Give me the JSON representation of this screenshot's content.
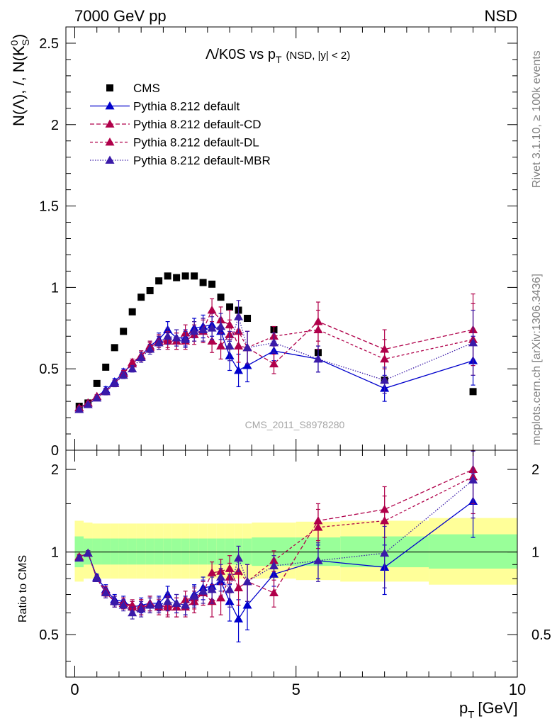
{
  "header": {
    "left": "7000 GeV pp",
    "right": "NSD"
  },
  "side_labels": {
    "rivet": "Rivet 3.1.10, ≥ 100k events",
    "mcplots": "mcplots.cern.ch [arXiv:1306.3436]"
  },
  "watermark": "CMS_2011_S8978280",
  "chart_data": {
    "type": "scatter",
    "title": "Λ/K0S vs p_T (NSD, |y| < 2)",
    "title_main": "Λ/K0S vs p",
    "title_sub": "T",
    "title_suffix": "(NSD, |y| < 2)",
    "xlabel": "p_T [GeV]",
    "xlabel_main": "p",
    "xlabel_sub": "T",
    "xlabel_suffix": "[GeV]",
    "ylabel": "N(Λ), /, N(K0S)",
    "ylabel_main": "N(Λ), /, N(K",
    "ylabel_sup": "0",
    "ylabel_sub": "S",
    "ylabel_end": ")",
    "ratio_ylabel": "Ratio to CMS",
    "xlim": [
      -0.2,
      10.0
    ],
    "ylim": [
      0,
      2.6
    ],
    "ratio_ylim": [
      0.35,
      2.35
    ],
    "ratio_log": true,
    "x_ticks": [
      "0",
      "5",
      "10"
    ],
    "y_ticks": [
      "0",
      "0.5",
      "1",
      "1.5",
      "2",
      "2.5"
    ],
    "ratio_ticks": [
      "0.5",
      "1",
      "2"
    ],
    "legend_position": "top-left",
    "series": [
      {
        "name": "CMS",
        "kind": "data",
        "color": "#000000",
        "x": [
          0.1,
          0.3,
          0.5,
          0.7,
          0.9,
          1.1,
          1.3,
          1.5,
          1.7,
          1.9,
          2.1,
          2.3,
          2.5,
          2.7,
          2.9,
          3.1,
          3.3,
          3.5,
          3.7,
          3.9,
          4.5,
          5.5,
          7.0,
          9.0
        ],
        "y": [
          0.27,
          0.29,
          0.41,
          0.51,
          0.63,
          0.73,
          0.85,
          0.94,
          0.98,
          1.04,
          1.07,
          1.06,
          1.07,
          1.07,
          1.03,
          1.02,
          0.94,
          0.88,
          0.86,
          0.81,
          0.74,
          0.6,
          0.43,
          0.36
        ]
      },
      {
        "name": "Pythia 8.212 default",
        "kind": "mc",
        "color": "#0000cc",
        "dash": "",
        "x": [
          0.1,
          0.3,
          0.5,
          0.7,
          0.9,
          1.1,
          1.3,
          1.5,
          1.7,
          1.9,
          2.1,
          2.3,
          2.5,
          2.7,
          2.9,
          3.1,
          3.3,
          3.5,
          3.7,
          3.9,
          4.5,
          5.5,
          7.0,
          9.0
        ],
        "y": [
          0.26,
          0.29,
          0.33,
          0.37,
          0.42,
          0.48,
          0.53,
          0.58,
          0.64,
          0.68,
          0.74,
          0.69,
          0.69,
          0.75,
          0.76,
          0.77,
          0.73,
          0.58,
          0.49,
          0.52,
          0.61,
          0.56,
          0.38,
          0.55
        ],
        "err": [
          0.01,
          0.01,
          0.01,
          0.02,
          0.02,
          0.02,
          0.02,
          0.03,
          0.03,
          0.04,
          0.05,
          0.05,
          0.05,
          0.06,
          0.07,
          0.07,
          0.08,
          0.09,
          0.1,
          0.1,
          0.06,
          0.08,
          0.08,
          0.15
        ],
        "ratio": [
          0.96,
          0.99,
          0.81,
          0.73,
          0.67,
          0.66,
          0.63,
          0.64,
          0.65,
          0.65,
          0.7,
          0.65,
          0.64,
          0.7,
          0.74,
          0.75,
          0.78,
          0.66,
          0.57,
          0.64,
          0.83,
          0.93,
          0.88,
          1.53
        ],
        "ratio_err": [
          0.02,
          0.02,
          0.02,
          0.03,
          0.03,
          0.03,
          0.03,
          0.04,
          0.04,
          0.04,
          0.05,
          0.05,
          0.05,
          0.06,
          0.07,
          0.08,
          0.09,
          0.1,
          0.1,
          0.12,
          0.08,
          0.13,
          0.18,
          0.4
        ]
      },
      {
        "name": "Pythia 8.212 default-CD",
        "kind": "mc",
        "color": "#b0004a",
        "dash": "6,3",
        "x": [
          0.1,
          0.3,
          0.5,
          0.7,
          0.9,
          1.1,
          1.3,
          1.5,
          1.7,
          1.9,
          2.1,
          2.3,
          2.5,
          2.7,
          2.9,
          3.1,
          3.3,
          3.5,
          3.7,
          3.9,
          4.5,
          5.5,
          7.0,
          9.0
        ],
        "y": [
          0.26,
          0.29,
          0.33,
          0.36,
          0.41,
          0.47,
          0.53,
          0.58,
          0.63,
          0.67,
          0.67,
          0.67,
          0.67,
          0.71,
          0.74,
          0.86,
          0.8,
          0.77,
          0.64,
          0.63,
          0.53,
          0.79,
          0.62,
          0.74
        ],
        "err": [
          0.01,
          0.01,
          0.01,
          0.02,
          0.02,
          0.02,
          0.02,
          0.03,
          0.03,
          0.04,
          0.05,
          0.05,
          0.05,
          0.06,
          0.07,
          0.07,
          0.08,
          0.09,
          0.1,
          0.1,
          0.06,
          0.12,
          0.12,
          0.22
        ],
        "ratio": [
          0.96,
          0.99,
          0.8,
          0.71,
          0.66,
          0.65,
          0.63,
          0.63,
          0.64,
          0.64,
          0.63,
          0.63,
          0.63,
          0.66,
          0.71,
          0.84,
          0.85,
          0.87,
          0.74,
          0.78,
          0.71,
          1.3,
          1.43,
          2.0
        ],
        "ratio_err": [
          0.02,
          0.02,
          0.02,
          0.03,
          0.03,
          0.03,
          0.03,
          0.04,
          0.04,
          0.04,
          0.05,
          0.05,
          0.05,
          0.06,
          0.07,
          0.08,
          0.09,
          0.1,
          0.1,
          0.12,
          0.08,
          0.2,
          0.3,
          0.5
        ]
      },
      {
        "name": "Pythia 8.212 default-DL",
        "kind": "mc",
        "color": "#b0004a",
        "dash": "4,3",
        "x": [
          0.1,
          0.3,
          0.5,
          0.7,
          0.9,
          1.1,
          1.3,
          1.5,
          1.7,
          1.9,
          2.1,
          2.3,
          2.5,
          2.7,
          2.9,
          3.1,
          3.3,
          3.5,
          3.7,
          3.9,
          4.5,
          5.5,
          7.0,
          9.0
        ],
        "y": [
          0.26,
          0.29,
          0.33,
          0.36,
          0.41,
          0.47,
          0.54,
          0.58,
          0.64,
          0.66,
          0.68,
          0.67,
          0.72,
          0.73,
          0.73,
          0.67,
          0.64,
          0.71,
          0.73,
          0.63,
          0.7,
          0.74,
          0.56,
          0.68
        ],
        "err": [
          0.01,
          0.01,
          0.01,
          0.02,
          0.02,
          0.02,
          0.02,
          0.03,
          0.03,
          0.04,
          0.05,
          0.05,
          0.05,
          0.06,
          0.07,
          0.07,
          0.08,
          0.09,
          0.1,
          0.1,
          0.06,
          0.12,
          0.12,
          0.22
        ],
        "ratio": [
          0.96,
          0.99,
          0.8,
          0.72,
          0.66,
          0.65,
          0.64,
          0.63,
          0.65,
          0.63,
          0.64,
          0.63,
          0.67,
          0.68,
          0.71,
          0.66,
          0.68,
          0.81,
          0.85,
          0.78,
          0.93,
          1.23,
          1.3,
          1.88
        ],
        "ratio_err": [
          0.02,
          0.02,
          0.02,
          0.03,
          0.03,
          0.03,
          0.03,
          0.04,
          0.04,
          0.04,
          0.05,
          0.05,
          0.05,
          0.06,
          0.07,
          0.08,
          0.09,
          0.1,
          0.1,
          0.12,
          0.08,
          0.2,
          0.3,
          0.5
        ]
      },
      {
        "name": "Pythia 8.212 default-MBR",
        "kind": "mc",
        "color": "#3a1aa8",
        "dash": "1.5,2",
        "x": [
          0.1,
          0.3,
          0.5,
          0.7,
          0.9,
          1.1,
          1.3,
          1.5,
          1.7,
          1.9,
          2.1,
          2.3,
          2.5,
          2.7,
          2.9,
          3.1,
          3.3,
          3.5,
          3.7,
          3.9,
          4.5,
          5.5,
          7.0,
          9.0
        ],
        "y": [
          0.25,
          0.28,
          0.32,
          0.36,
          0.41,
          0.46,
          0.5,
          0.57,
          0.62,
          0.66,
          0.7,
          0.69,
          0.68,
          0.73,
          0.74,
          0.75,
          0.76,
          0.64,
          0.82,
          0.63,
          0.66,
          0.56,
          0.43,
          0.66
        ],
        "err": [
          0.01,
          0.01,
          0.01,
          0.02,
          0.02,
          0.02,
          0.02,
          0.03,
          0.03,
          0.04,
          0.05,
          0.05,
          0.05,
          0.06,
          0.07,
          0.07,
          0.08,
          0.09,
          0.1,
          0.1,
          0.06,
          0.08,
          0.08,
          0.2
        ],
        "ratio": [
          0.95,
          0.99,
          0.8,
          0.71,
          0.66,
          0.64,
          0.6,
          0.62,
          0.64,
          0.64,
          0.66,
          0.65,
          0.64,
          0.69,
          0.72,
          0.73,
          0.81,
          0.73,
          0.95,
          0.78,
          0.89,
          0.93,
          0.99,
          1.83
        ],
        "ratio_err": [
          0.02,
          0.02,
          0.02,
          0.03,
          0.03,
          0.03,
          0.03,
          0.04,
          0.04,
          0.04,
          0.05,
          0.05,
          0.05,
          0.06,
          0.07,
          0.08,
          0.09,
          0.1,
          0.1,
          0.12,
          0.08,
          0.15,
          0.25,
          0.5
        ]
      }
    ],
    "uncertainty_band": {
      "x_edges": [
        0.0,
        0.2,
        0.4,
        0.6,
        0.8,
        1.0,
        1.2,
        1.4,
        1.6,
        1.8,
        2.0,
        2.2,
        2.4,
        2.6,
        2.8,
        3.0,
        3.2,
        3.4,
        3.6,
        3.8,
        4.0,
        5.0,
        6.0,
        8.0,
        10.0
      ],
      "inner": [
        [
          0.88,
          1.14
        ],
        [
          0.9,
          1.12
        ],
        [
          0.9,
          1.12
        ],
        [
          0.9,
          1.12
        ],
        [
          0.9,
          1.12
        ],
        [
          0.9,
          1.12
        ],
        [
          0.9,
          1.12
        ],
        [
          0.9,
          1.12
        ],
        [
          0.9,
          1.12
        ],
        [
          0.9,
          1.12
        ],
        [
          0.9,
          1.12
        ],
        [
          0.9,
          1.12
        ],
        [
          0.9,
          1.12
        ],
        [
          0.9,
          1.12
        ],
        [
          0.9,
          1.12
        ],
        [
          0.9,
          1.12
        ],
        [
          0.9,
          1.12
        ],
        [
          0.9,
          1.12
        ],
        [
          0.9,
          1.12
        ],
        [
          0.9,
          1.12
        ],
        [
          0.89,
          1.13
        ],
        [
          0.89,
          1.13
        ],
        [
          0.88,
          1.14
        ],
        [
          0.87,
          1.16
        ]
      ],
      "outer": [
        [
          0.78,
          1.3
        ],
        [
          0.8,
          1.28
        ],
        [
          0.8,
          1.27
        ],
        [
          0.8,
          1.27
        ],
        [
          0.8,
          1.27
        ],
        [
          0.8,
          1.27
        ],
        [
          0.8,
          1.27
        ],
        [
          0.8,
          1.27
        ],
        [
          0.8,
          1.27
        ],
        [
          0.8,
          1.27
        ],
        [
          0.8,
          1.27
        ],
        [
          0.8,
          1.27
        ],
        [
          0.8,
          1.27
        ],
        [
          0.8,
          1.27
        ],
        [
          0.8,
          1.27
        ],
        [
          0.8,
          1.27
        ],
        [
          0.8,
          1.27
        ],
        [
          0.8,
          1.27
        ],
        [
          0.8,
          1.27
        ],
        [
          0.8,
          1.27
        ],
        [
          0.8,
          1.28
        ],
        [
          0.79,
          1.29
        ],
        [
          0.78,
          1.3
        ],
        [
          0.76,
          1.33
        ]
      ]
    }
  }
}
